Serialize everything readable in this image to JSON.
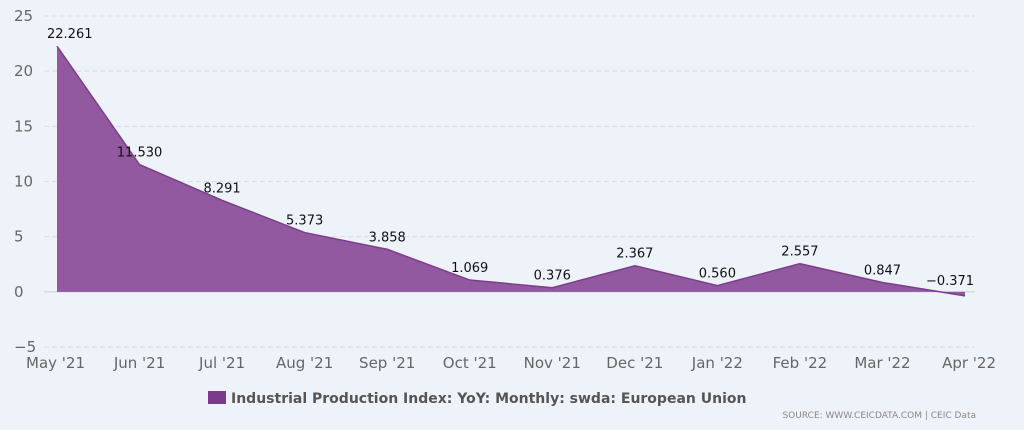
{
  "chart_data": {
    "type": "area",
    "title": "",
    "xlabel": "",
    "ylabel": "",
    "categories": [
      "May '21",
      "Jun '21",
      "Jul '21",
      "Aug '21",
      "Sep '21",
      "Oct '21",
      "Nov '21",
      "Dec '21",
      "Jan '22",
      "Feb '22",
      "Mar '22",
      "Apr '22"
    ],
    "series": [
      {
        "name": "Industrial Production Index: YoY: Monthly: swda: European Union",
        "values": [
          22.261,
          11.53,
          8.291,
          5.373,
          3.858,
          1.069,
          0.376,
          2.367,
          0.56,
          2.557,
          0.847,
          -0.371
        ],
        "labels": [
          "22.261",
          "11.530",
          "8.291",
          "5.373",
          "3.858",
          "1.069",
          "0.376",
          "2.367",
          "0.560",
          "2.557",
          "0.847",
          "−0.371"
        ]
      }
    ],
    "ylim": [
      -5,
      25
    ],
    "yticks": [
      25,
      20,
      15,
      10,
      5,
      0,
      -5
    ],
    "ytick_labels": [
      "25",
      "20",
      "15",
      "10",
      "5",
      "0",
      "−5"
    ],
    "grid": true,
    "legend": "bottom-center",
    "colors": {
      "fill": "#8c4f9b",
      "line": "#7d3d8e",
      "legend_swatch": "#7b3b8c",
      "grid": "#d9dde4",
      "background": "#eef2f9"
    }
  },
  "legend_label": "Industrial Production Index: YoY: Monthly: swda: European Union",
  "source": "SOURCE: WWW.CEICDATA.COM | CEIC Data"
}
